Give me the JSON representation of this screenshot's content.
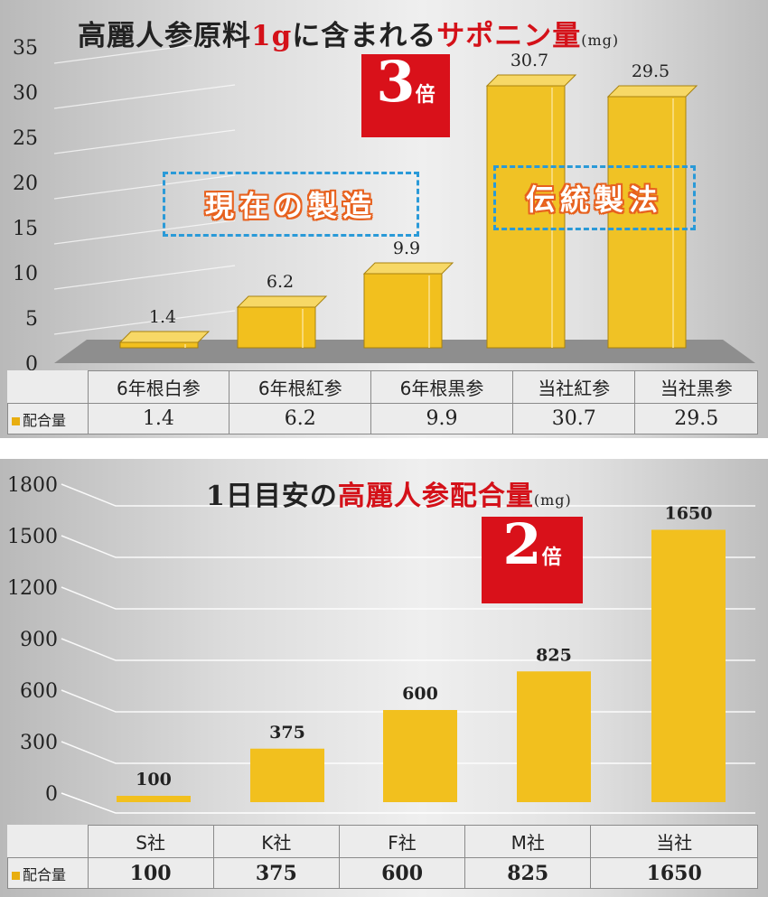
{
  "chart_data": [
    {
      "type": "bar",
      "title": "高麗人参原料1gに含まれるサポニン量",
      "title_parts": [
        "高麗人参原料",
        "1g",
        "に含まれる",
        "サポニン量",
        "(mg)"
      ],
      "categories": [
        "6年根白参",
        "6年根紅参",
        "6年根黒参",
        "当社紅参",
        "当社黒参"
      ],
      "series": [
        {
          "name": "配合量",
          "values": [
            1.4,
            6.2,
            9.9,
            30.7,
            29.5
          ]
        }
      ],
      "value_labels": [
        "1.4",
        "6.2",
        "9.9",
        "30.7",
        "29.5"
      ],
      "highlight": [
        false,
        false,
        false,
        true,
        true
      ],
      "yticks": [
        0,
        5,
        10,
        15,
        20,
        25,
        30,
        35
      ],
      "ylim": [
        0,
        35
      ],
      "badge": {
        "number": "3",
        "suffix": "倍"
      },
      "callouts": [
        "現在の製造",
        "伝統製法"
      ],
      "legend_label": "配合量",
      "grid": true
    },
    {
      "type": "bar",
      "title": "1日目安の高麗人参配合量",
      "title_parts": [
        "1日目安の",
        "高麗人参配合量",
        "(mg)"
      ],
      "categories": [
        "S社",
        "K社",
        "F社",
        "M社",
        "当社"
      ],
      "series": [
        {
          "name": "配合量",
          "values": [
            100,
            375,
            600,
            825,
            1650
          ]
        }
      ],
      "value_labels": [
        "100",
        "375",
        "600",
        "825",
        "1650"
      ],
      "highlight": [
        false,
        false,
        false,
        false,
        true
      ],
      "yticks": [
        0,
        300,
        600,
        900,
        1200,
        1500,
        1800
      ],
      "ylim": [
        0,
        1800
      ],
      "badge": {
        "number": "2",
        "suffix": "倍"
      },
      "legend_label": "配合量",
      "grid": true
    }
  ],
  "colors": {
    "bar": "#f2c01e",
    "bar_dark": "#a8820f",
    "highlight_text": "#d41119",
    "badge": "#d9111a",
    "callout_border": "#2a9ad8",
    "callout_text_outline": "#e7611e"
  }
}
